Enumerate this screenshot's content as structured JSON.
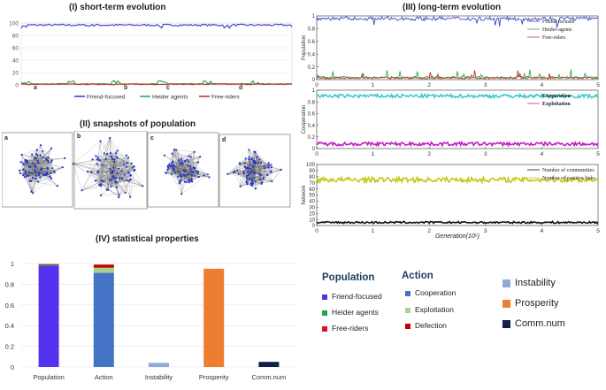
{
  "panels": {
    "I": {
      "title": "(I)   short-term evolution"
    },
    "II": {
      "title": "(II)   snapshots of population",
      "snap_labels": [
        "a",
        "b",
        "c",
        "d"
      ]
    },
    "III": {
      "title": "(III)   long-term evolution"
    },
    "IV": {
      "title": "(IV)   statistical properties"
    }
  },
  "colors": {
    "friend": "#3b46c8",
    "heider": "#2fa84f",
    "free": "#c0392b",
    "cooperation": "#3ec9c9",
    "exploitation": "#c020c0",
    "communities": "#111111",
    "positive_links": "#c9c41a",
    "iv_friend": "#5533ee",
    "iv_heider": "#23a34a",
    "iv_free": "#e0101e",
    "iv_coop": "#4472c4",
    "iv_exploit": "#a9d18e",
    "iv_defect": "#c00000",
    "iv_instability": "#8faadc",
    "iv_prosperity": "#ed7d31",
    "iv_comm": "#0f1f4a"
  },
  "chart_data": [
    {
      "type": "line",
      "title": "(I)   short-term evolution",
      "ylim": [
        0,
        100
      ],
      "y_ticks": [
        "0",
        "20",
        "40",
        "60",
        "80",
        "100"
      ],
      "x_markers": [
        "a",
        "b",
        "c",
        "d"
      ],
      "series": [
        {
          "name": "Friend-focused",
          "level": 97
        },
        {
          "name": "Heider agents",
          "level": 1
        },
        {
          "name": "Free-riders",
          "level": 0.5
        }
      ]
    },
    {
      "type": "line",
      "title": "(III)   long-term evolution",
      "xlabel": "Generation(10⁵)",
      "x_ticks": [
        "0",
        "1",
        "2",
        "3",
        "4",
        "5"
      ],
      "subplots": [
        {
          "ylabel": "Population",
          "ylim": [
            0,
            1
          ],
          "y_ticks": [
            "0",
            "0.2",
            "0.4",
            "0.6",
            "0.8",
            "1"
          ],
          "series": [
            {
              "name": "Friend-focused",
              "level": 0.97
            },
            {
              "name": "Heider-agents",
              "level": 0.02
            },
            {
              "name": "Free-riders",
              "level": 0.01
            }
          ]
        },
        {
          "ylabel": "Cooperation",
          "ylim": [
            0,
            1
          ],
          "y_ticks": [
            "0",
            "0.2",
            "0.4",
            "0.6",
            "0.8",
            "1"
          ],
          "series": [
            {
              "name": "Cooperation",
              "level": 0.9
            },
            {
              "name": "Exploitation",
              "level": 0.08
            }
          ]
        },
        {
          "ylabel": "Network",
          "ylim": [
            0,
            100
          ],
          "y_ticks": [
            "0",
            "10",
            "20",
            "30",
            "40",
            "50",
            "60",
            "70",
            "80",
            "90",
            "100"
          ],
          "series": [
            {
              "name": "Number of communities",
              "level": 5
            },
            {
              "name": "Number of positive links",
              "level": 75
            }
          ]
        }
      ]
    },
    {
      "type": "bar",
      "title": "(IV)   statistical properties",
      "ylim": [
        0,
        1
      ],
      "y_ticks": [
        "0",
        "0.2",
        "0.4",
        "0.6",
        "0.8",
        "1"
      ],
      "categories": [
        "Population",
        "Action",
        "Instability",
        "Prosperity",
        "Comm.num"
      ],
      "stacks": [
        [
          {
            "name": "Friend-focused",
            "value": 0.98
          },
          {
            "name": "Heider agents",
            "value": 0.01
          },
          {
            "name": "Free-riders",
            "value": 0.005
          }
        ],
        [
          {
            "name": "Cooperation",
            "value": 0.91
          },
          {
            "name": "Exploitation",
            "value": 0.05
          },
          {
            "name": "Defection",
            "value": 0.03
          }
        ],
        [
          {
            "name": "Instability",
            "value": 0.04
          }
        ],
        [
          {
            "name": "Prosperity",
            "value": 0.95
          }
        ],
        [
          {
            "name": "Comm.num",
            "value": 0.05
          }
        ]
      ]
    }
  ],
  "legend_I": [
    "Friend-focused",
    "Heider agents",
    "Free-riders"
  ],
  "legend_III_pop": [
    "Friend-focused",
    "Heider-agents",
    "Free-riders"
  ],
  "legend_III_coop": [
    "Cooperation",
    "Exploitation"
  ],
  "legend_III_net": [
    "Number of communities",
    "Number of positive links"
  ],
  "legend_IV": {
    "population_head": "Population",
    "population": [
      "Friend-focused",
      "Heider agents",
      "Free-riders"
    ],
    "action_head": "Action",
    "action": [
      "Cooperation",
      "Exploitation",
      "Defection"
    ],
    "others": [
      "Instability",
      "Prosperity",
      "Comm.num"
    ]
  }
}
